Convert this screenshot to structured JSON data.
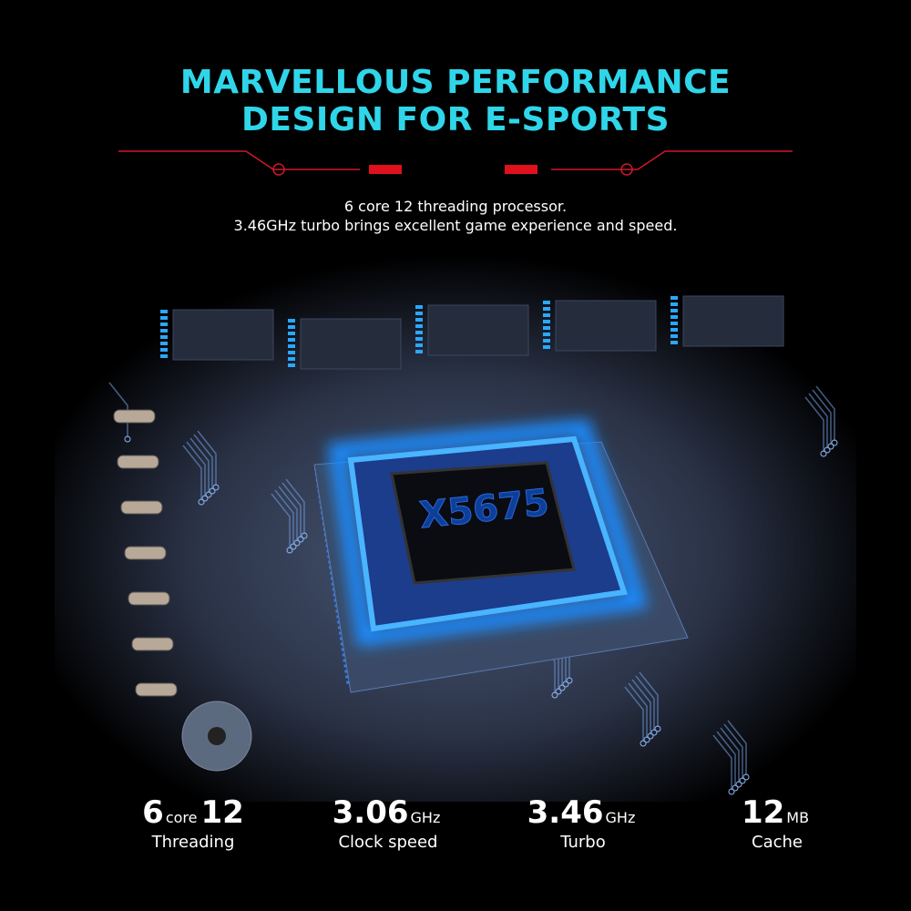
{
  "header": {
    "title_lines": [
      "MARVELLOUS PERFORMANCE",
      "DESIGN FOR E-SPORTS"
    ],
    "subtitle_lines": [
      "6 core 12 threading processor.",
      "3.46GHz turbo brings excellent game experience and speed."
    ]
  },
  "chip": {
    "label": "X5675"
  },
  "specs": [
    {
      "number": "6",
      "unit": "core",
      "number2": "12",
      "label": "Threading"
    },
    {
      "number": "3.06",
      "unit": "GHz",
      "label": "Clock speed"
    },
    {
      "number": "3.46",
      "unit": "GHz",
      "label": "Turbo"
    },
    {
      "number": "12",
      "unit": "MB",
      "label": "Cache"
    }
  ]
}
